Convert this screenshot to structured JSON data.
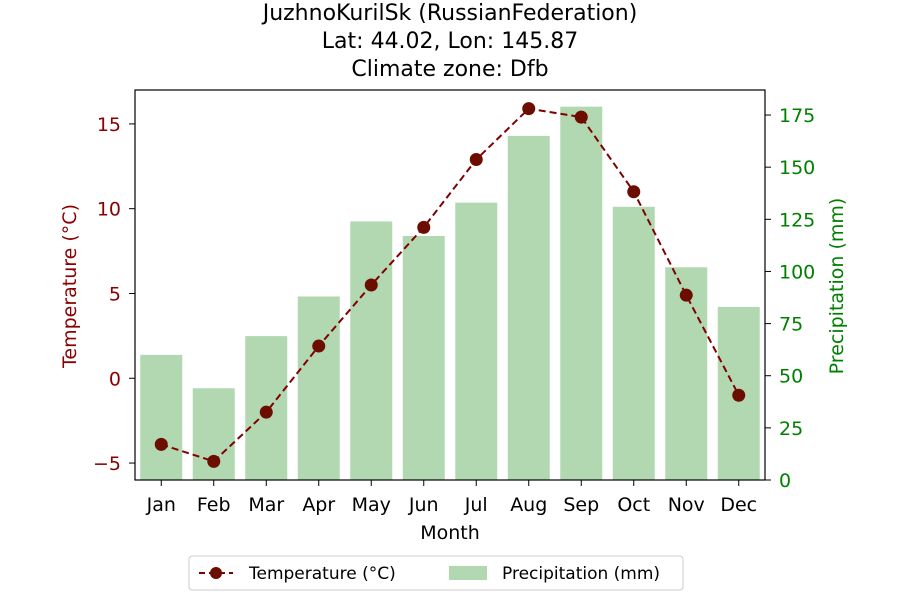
{
  "chart_data": {
    "type": "bar+line",
    "title": {
      "line1": "JuzhnoKurilSk (RussianFederation)",
      "line2": "Lat: 44.02, Lon: 145.87",
      "line3": "Climate zone: Dfb"
    },
    "xlabel": "Month",
    "ylabel_left": "Temperature (°C)",
    "ylabel_right": "Precipitation (mm)",
    "categories": [
      "Jan",
      "Feb",
      "Mar",
      "Apr",
      "May",
      "Jun",
      "Jul",
      "Aug",
      "Sep",
      "Oct",
      "Nov",
      "Dec"
    ],
    "temperature": {
      "name": "Temperature (°C)",
      "values": [
        -3.9,
        -4.9,
        -2.0,
        1.9,
        5.5,
        8.9,
        12.9,
        15.9,
        15.4,
        11.0,
        4.9,
        -1.0
      ],
      "color": "#800000",
      "marker_color": "#6b0e00"
    },
    "precipitation": {
      "name": "Precipitation (mm)",
      "values": [
        60,
        44,
        69,
        88,
        124,
        117,
        133,
        165,
        179,
        131,
        102,
        83
      ],
      "color": "#b2d8b2"
    },
    "ylim_left": [
      -6,
      17
    ],
    "yticks_left": [
      -5,
      0,
      5,
      10,
      15
    ],
    "ylim_right": [
      0,
      187
    ],
    "yticks_right": [
      0,
      25,
      50,
      75,
      100,
      125,
      150,
      175
    ],
    "left_axis_color": "#8b0000",
    "right_axis_color": "#008000",
    "legend_position": "bottom-center"
  }
}
